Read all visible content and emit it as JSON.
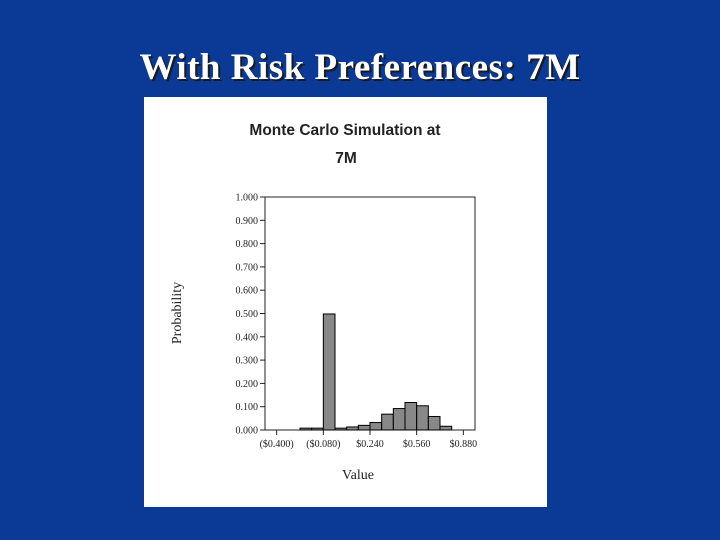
{
  "slide": {
    "title": "With Risk Preferences: 7M"
  },
  "chart_data": {
    "type": "bar",
    "title_lines": [
      "Monte Carlo Simulation at",
      "7M"
    ],
    "xlabel": "Value",
    "ylabel": "Probability",
    "xlim": [
      -0.48,
      0.96
    ],
    "ylim": [
      0,
      1
    ],
    "yticks": [
      0,
      0.1,
      0.2,
      0.3,
      0.4,
      0.5,
      0.6,
      0.7,
      0.8,
      0.9,
      1.0
    ],
    "ytick_labels": [
      "0.000",
      "0.100",
      "0.200",
      "0.300",
      "0.400",
      "0.500",
      "0.600",
      "0.700",
      "0.800",
      "0.900",
      "1.000"
    ],
    "xticks": [
      -0.4,
      -0.08,
      0.24,
      0.56,
      0.88
    ],
    "xtick_labels": [
      "($0.400)",
      "($0.080)",
      "$0.240",
      "$0.560",
      "$0.880"
    ],
    "bin_width": 0.08,
    "bins": [
      {
        "x0": -0.24,
        "value": 0.008
      },
      {
        "x0": -0.16,
        "value": 0.008
      },
      {
        "x0": -0.08,
        "value": 0.498
      },
      {
        "x0": 0.0,
        "value": 0.008
      },
      {
        "x0": 0.08,
        "value": 0.013
      },
      {
        "x0": 0.16,
        "value": 0.02
      },
      {
        "x0": 0.24,
        "value": 0.032
      },
      {
        "x0": 0.32,
        "value": 0.068
      },
      {
        "x0": 0.4,
        "value": 0.092
      },
      {
        "x0": 0.48,
        "value": 0.118
      },
      {
        "x0": 0.56,
        "value": 0.104
      },
      {
        "x0": 0.64,
        "value": 0.058
      },
      {
        "x0": 0.72,
        "value": 0.016
      }
    ],
    "grid": false,
    "bar_color": "#888888",
    "bar_edge_color": "#000000"
  }
}
